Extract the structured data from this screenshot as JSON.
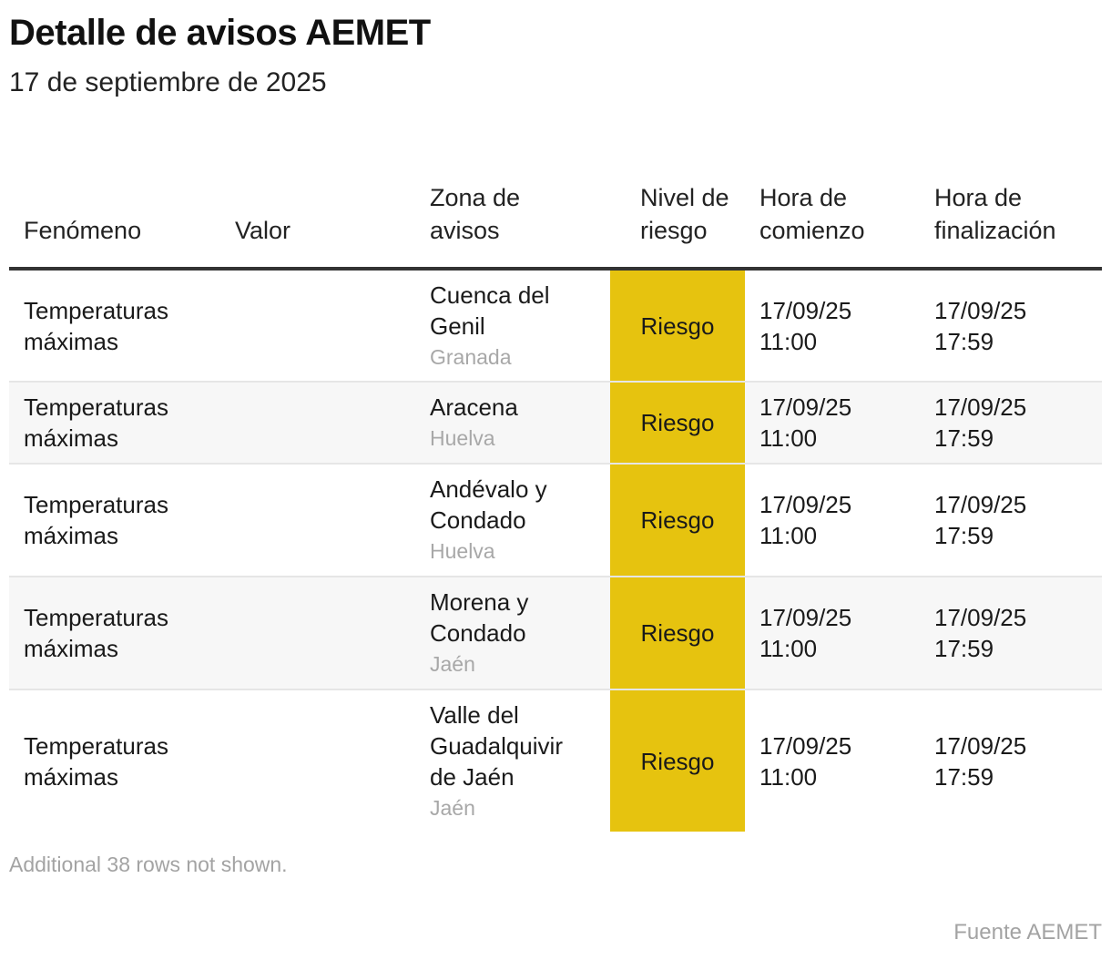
{
  "title": "Detalle de avisos AEMET",
  "subtitle": "17 de septiembre de 2025",
  "columns": [
    "Fenómeno",
    "Valor",
    "Zona de avisos",
    "Nivel de riesgo",
    "Hora de comienzo",
    "Hora de finalización"
  ],
  "level_color": "#e6c30f",
  "rows": [
    {
      "fenomeno": "Temperaturas máximas",
      "valor": "",
      "zona": "Cuenca del Genil",
      "provincia": "Granada",
      "nivel": "Riesgo",
      "inicio": "17/09/25 11:00",
      "fin": "17/09/25 17:59"
    },
    {
      "fenomeno": "Temperaturas máximas",
      "valor": "",
      "zona": "Aracena",
      "provincia": "Huelva",
      "nivel": "Riesgo",
      "inicio": "17/09/25 11:00",
      "fin": "17/09/25 17:59"
    },
    {
      "fenomeno": "Temperaturas máximas",
      "valor": "",
      "zona": "Andévalo y Condado",
      "provincia": "Huelva",
      "nivel": "Riesgo",
      "inicio": "17/09/25 11:00",
      "fin": "17/09/25 17:59"
    },
    {
      "fenomeno": "Temperaturas máximas",
      "valor": "",
      "zona": "Morena y Condado",
      "provincia": "Jaén",
      "nivel": "Riesgo",
      "inicio": "17/09/25 11:00",
      "fin": "17/09/25 17:59"
    },
    {
      "fenomeno": "Temperaturas máximas",
      "valor": "",
      "zona": "Valle del Guadalquivir de Jaén",
      "provincia": "Jaén",
      "nivel": "Riesgo",
      "inicio": "17/09/25 11:00",
      "fin": "17/09/25 17:59"
    }
  ],
  "footnote": "Additional 38 rows not shown.",
  "source": "Fuente AEMET",
  "chart_data": {
    "type": "table",
    "title": "Detalle de avisos AEMET",
    "subtitle": "17 de septiembre de 2025",
    "columns": [
      "Fenómeno",
      "Valor",
      "Zona de avisos",
      "Nivel de riesgo",
      "Hora de comienzo",
      "Hora de finalización"
    ],
    "rows": [
      [
        "Temperaturas máximas",
        "",
        "Cuenca del Genil (Granada)",
        "Riesgo",
        "17/09/25 11:00",
        "17/09/25 17:59"
      ],
      [
        "Temperaturas máximas",
        "",
        "Aracena (Huelva)",
        "Riesgo",
        "17/09/25 11:00",
        "17/09/25 17:59"
      ],
      [
        "Temperaturas máximas",
        "",
        "Andévalo y Condado (Huelva)",
        "Riesgo",
        "17/09/25 11:00",
        "17/09/25 17:59"
      ],
      [
        "Temperaturas máximas",
        "",
        "Morena y Condado (Jaén)",
        "Riesgo",
        "17/09/25 11:00",
        "17/09/25 17:59"
      ],
      [
        "Temperaturas máximas",
        "",
        "Valle del Guadalquivir de Jaén (Jaén)",
        "Riesgo",
        "17/09/25 11:00",
        "17/09/25 17:59"
      ]
    ]
  }
}
